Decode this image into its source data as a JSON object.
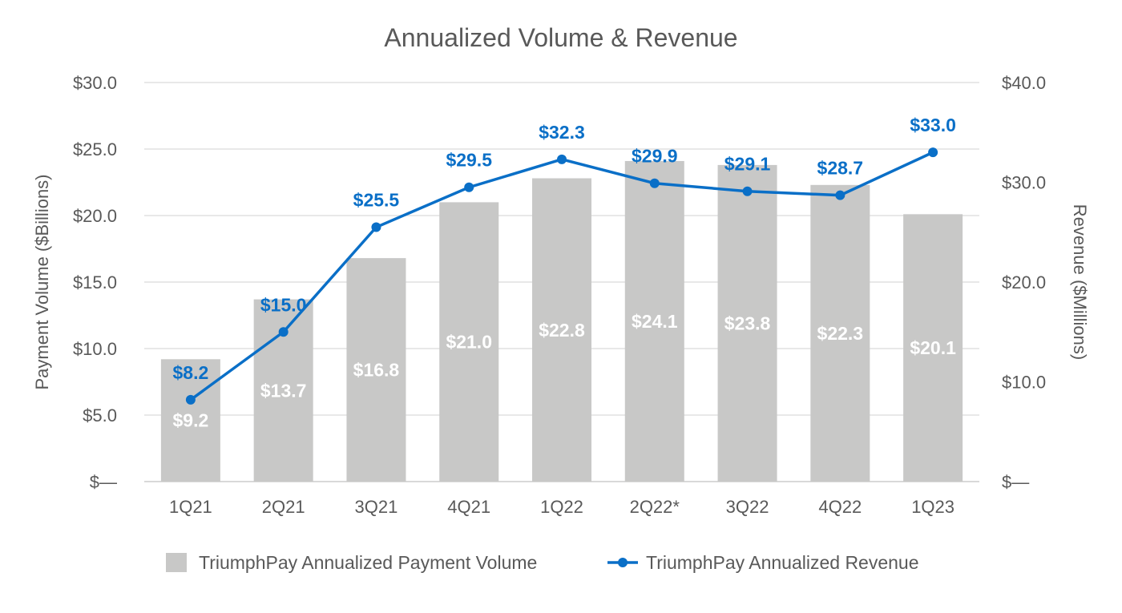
{
  "chart_data": {
    "type": "bar+line",
    "title": "Annualized Volume & Revenue",
    "categories": [
      "1Q21",
      "2Q21",
      "3Q21",
      "4Q21",
      "1Q22",
      "2Q22*",
      "3Q22",
      "4Q22",
      "1Q23"
    ],
    "series": [
      {
        "name": "TriumphPay Annualized Payment Volume",
        "type": "bar",
        "axis": "left",
        "values": [
          9.2,
          13.7,
          16.8,
          21.0,
          22.8,
          24.1,
          23.8,
          22.3,
          20.1
        ],
        "labels": [
          "$9.2",
          "$13.7",
          "$16.8",
          "$21.0",
          "$22.8",
          "$24.1",
          "$23.8",
          "$22.3",
          "$20.1"
        ],
        "color": "#c8c8c7"
      },
      {
        "name": "TriumphPay Annualized Revenue",
        "type": "line",
        "axis": "right",
        "values": [
          8.2,
          15.0,
          25.5,
          29.5,
          32.3,
          29.9,
          29.1,
          28.7,
          33.0
        ],
        "labels": [
          "$8.2",
          "$15.0",
          "$25.5",
          "$29.5",
          "$32.3",
          "$29.9",
          "$29.1",
          "$28.7",
          "$33.0"
        ],
        "color": "#0a6fc7"
      }
    ],
    "ylabel_left": "Payment Volume ($Billions)",
    "ylabel_right": "Revenue ($Millions)",
    "ylim_left": [
      0,
      30
    ],
    "ylim_right": [
      0,
      40
    ],
    "yticks_left": [
      "$—",
      "$5.0",
      "$10.0",
      "$15.0",
      "$20.0",
      "$25.0",
      "$30.0"
    ],
    "yticks_right": [
      "$—",
      "$10.0",
      "$20.0",
      "$30.0",
      "$40.0"
    ],
    "grid": true,
    "legend_placement": "bottom"
  }
}
